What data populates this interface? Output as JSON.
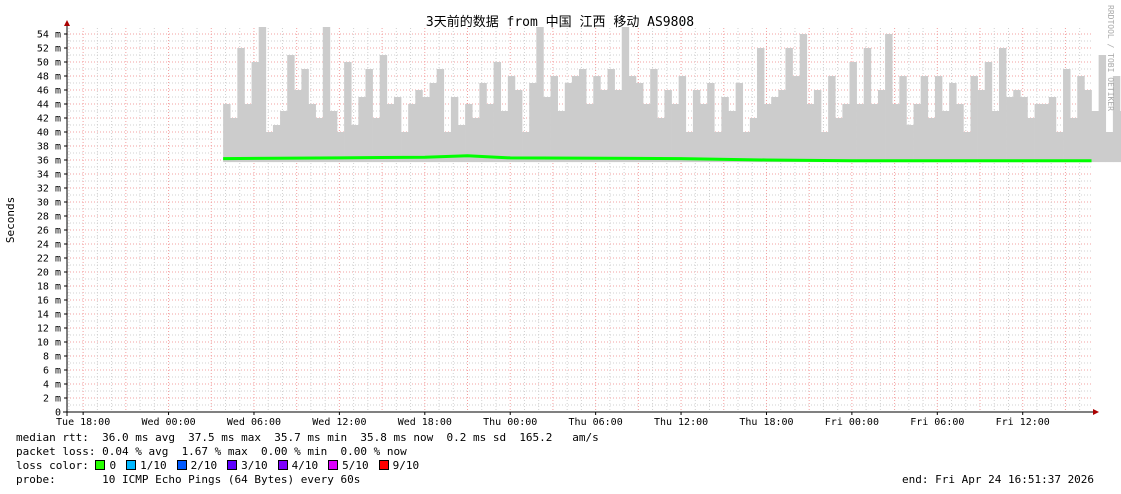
{
  "chart_data": {
    "type": "area",
    "title": "3天前的数据 from 中国 江西 移动 AS9808",
    "ylabel": "Seconds",
    "watermark": "RRDTOOL / TOBI OETIKER",
    "ylim": [
      0,
      55
    ],
    "yticks": [
      0,
      2,
      4,
      6,
      8,
      10,
      12,
      14,
      16,
      18,
      20,
      22,
      24,
      26,
      28,
      30,
      32,
      34,
      36,
      38,
      40,
      42,
      44,
      46,
      48,
      50,
      52,
      54
    ],
    "ytick_labels": [
      "0",
      "2 m",
      "4 m",
      "6 m",
      "8 m",
      "10 m",
      "12 m",
      "14 m",
      "16 m",
      "18 m",
      "20 m",
      "22 m",
      "24 m",
      "26 m",
      "28 m",
      "30 m",
      "32 m",
      "34 m",
      "36 m",
      "38 m",
      "40 m",
      "42 m",
      "44 m",
      "46 m",
      "48 m",
      "50 m",
      "52 m",
      "54 m"
    ],
    "xlim": [
      "2026-04-21 16:52",
      "2026-04-24 16:52"
    ],
    "xticks": [
      {
        "t": "2026-04-21 18:00",
        "label": "Tue 18:00"
      },
      {
        "t": "2026-04-22 00:00",
        "label": "Wed 00:00"
      },
      {
        "t": "2026-04-22 06:00",
        "label": "Wed 06:00"
      },
      {
        "t": "2026-04-22 12:00",
        "label": "Wed 12:00"
      },
      {
        "t": "2026-04-22 18:00",
        "label": "Wed 18:00"
      },
      {
        "t": "2026-04-23 00:00",
        "label": "Thu 00:00"
      },
      {
        "t": "2026-04-23 06:00",
        "label": "Thu 06:00"
      },
      {
        "t": "2026-04-23 12:00",
        "label": "Thu 12:00"
      },
      {
        "t": "2026-04-23 18:00",
        "label": "Thu 18:00"
      },
      {
        "t": "2026-04-24 00:00",
        "label": "Fri 00:00"
      },
      {
        "t": "2026-04-24 06:00",
        "label": "Fri 06:00"
      },
      {
        "t": "2026-04-24 12:00",
        "label": "Fri 12:00"
      }
    ],
    "grid": true,
    "smoke": {
      "start": "2026-04-22 03:50",
      "step_minutes": 30,
      "min": 35.7,
      "max": [
        44,
        42,
        52,
        44,
        50,
        55,
        40,
        41,
        43,
        51,
        46,
        49,
        44,
        42,
        55,
        43,
        40,
        50,
        41,
        45,
        49,
        42,
        51,
        44,
        45,
        40,
        44,
        46,
        45,
        47,
        49,
        40,
        45,
        41,
        44,
        42,
        47,
        44,
        50,
        43,
        48,
        46,
        40,
        47,
        55,
        45,
        48,
        43,
        47,
        48,
        49,
        44,
        48,
        46,
        49,
        46,
        55,
        48,
        47,
        44,
        49,
        42,
        46,
        44,
        48,
        40,
        46,
        44,
        47,
        40,
        45,
        43,
        47,
        40,
        42,
        52,
        44,
        45,
        46,
        52,
        48,
        54,
        44,
        46,
        40,
        48,
        42,
        44,
        50,
        44,
        52,
        44,
        46,
        54,
        44,
        48,
        41,
        44,
        48,
        42,
        48,
        43,
        47,
        44,
        40,
        48,
        46,
        50,
        43,
        52,
        45,
        46,
        45,
        42,
        44,
        44,
        45,
        40,
        49,
        42,
        48,
        46,
        43,
        51,
        40,
        48,
        43,
        50,
        48,
        52,
        48,
        44,
        47,
        53
      ]
    },
    "median": [
      [
        "2026-04-22 03:50",
        36.2
      ],
      [
        "2026-04-22 12:00",
        36.3
      ],
      [
        "2026-04-22 18:00",
        36.4
      ],
      [
        "2026-04-22 21:00",
        36.6
      ],
      [
        "2026-04-23 00:00",
        36.3
      ],
      [
        "2026-04-23 12:00",
        36.2
      ],
      [
        "2026-04-23 18:00",
        36.0
      ],
      [
        "2026-04-24 00:00",
        35.9
      ],
      [
        "2026-04-24 16:50",
        35.9
      ]
    ],
    "loss_color_line": "#00ff00",
    "smoke_color": "#cccccc"
  },
  "legend": {
    "median_rtt": "median rtt:  36.0 ms avg  37.5 ms max  35.7 ms min  35.8 ms now  0.2 ms sd  165.2   am/s",
    "packet_loss": "packet loss: 0.04 % avg  1.67 % max  0.00 % min  0.00 % now",
    "loss_label": "loss color:",
    "loss_items": [
      {
        "label": "0",
        "color": "#26ff00"
      },
      {
        "label": "1/10",
        "color": "#00b8ff"
      },
      {
        "label": "2/10",
        "color": "#0059ff"
      },
      {
        "label": "3/10",
        "color": "#5e00ff"
      },
      {
        "label": "4/10",
        "color": "#7e00ff"
      },
      {
        "label": "5/10",
        "color": "#dd00ff"
      },
      {
        "label": "9/10",
        "color": "#ff0000"
      }
    ],
    "probe": "probe:       10 ICMP Echo Pings (64 Bytes) every 60s",
    "end": "end: Fri Apr 24 16:51:37 2026"
  }
}
